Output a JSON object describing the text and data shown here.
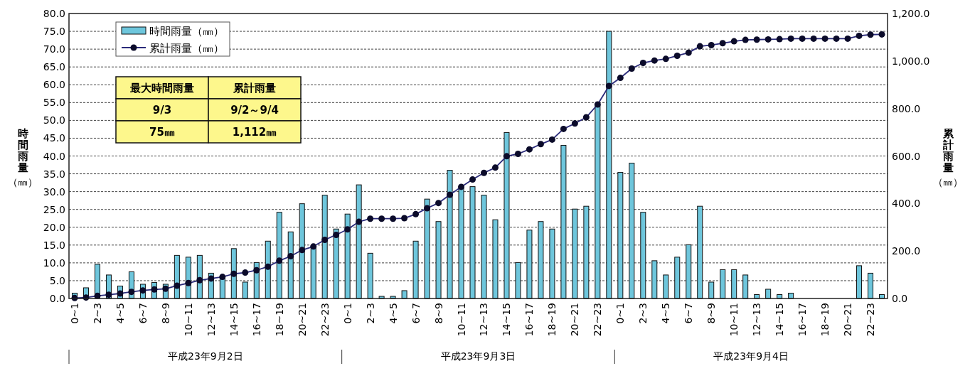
{
  "chart_data": {
    "type": "bar",
    "ylabel": "時間雨量（㎜）",
    "y2label": "累計雨量（㎜）",
    "categories": [
      "0~1",
      null,
      "2~3",
      null,
      "4~5",
      null,
      "6~7",
      null,
      "8~9",
      null,
      "10~11",
      null,
      "12~13",
      null,
      "14~15",
      null,
      "16~17",
      null,
      "18~19",
      null,
      "20~21",
      null,
      "22~23",
      null,
      "0~1",
      null,
      "2~3",
      null,
      "4~5",
      null,
      "6~7",
      null,
      "8~9",
      null,
      "10~11",
      null,
      "12~13",
      null,
      "14~15",
      null,
      "16~17",
      null,
      "18~19",
      null,
      "20~21",
      null,
      "22~23",
      null,
      "0~1",
      null,
      "2~3",
      null,
      "4~5",
      null,
      "6~7",
      null,
      "8~9",
      null,
      "10~11",
      null,
      "12~13",
      null,
      "14~15",
      null,
      "16~17",
      null,
      "18~19",
      null,
      "20~21",
      null,
      "22~23",
      null
    ],
    "series": [
      {
        "name": "時間雨量（㎜）",
        "color": "#6ec6dc",
        "values": [
          1.5,
          3.0,
          9.6,
          6.6,
          3.5,
          7.5,
          4.0,
          4.5,
          4.0,
          12.1,
          11.6,
          12.1,
          7.1,
          6.0,
          14.0,
          4.6,
          10.1,
          16.1,
          24.2,
          18.7,
          26.6,
          14.5,
          29.0,
          19.5,
          23.7,
          31.9,
          12.7,
          0.6,
          0.6,
          2.2,
          16.1,
          27.9,
          21.6,
          36.0,
          31.0,
          31.4,
          29.0,
          22.1,
          46.6,
          10.1,
          19.2,
          21.6,
          19.5,
          43.0,
          25.1,
          25.9,
          54.1,
          75.0,
          35.4,
          38.0,
          24.2,
          10.6,
          6.6,
          11.6,
          15.1,
          25.9,
          4.6,
          8.1,
          8.1,
          6.6,
          1.1,
          2.6,
          1.1,
          1.5,
          0,
          0,
          0,
          0,
          0,
          9.2,
          7.1,
          1.1
        ]
      },
      {
        "name": "累計雨量（㎜）",
        "type": "line",
        "axis": "y2",
        "color": "#2a2a7a",
        "marker": "circle",
        "values": [
          2,
          4,
          11,
          16,
          21,
          28,
          34,
          38,
          41,
          54,
          65,
          77,
          84,
          91,
          104,
          109,
          119,
          134,
          159,
          178,
          204,
          219,
          247,
          268,
          291,
          323,
          336,
          336,
          336,
          338,
          355,
          380,
          402,
          437,
          470,
          501,
          529,
          551,
          599,
          609,
          628,
          650,
          669,
          714,
          737,
          763,
          817,
          895,
          929,
          968,
          992,
          1002,
          1009,
          1022,
          1035,
          1062,
          1067,
          1075,
          1083,
          1089,
          1090,
          1091,
          1092,
          1094,
          1094,
          1094,
          1094,
          1094,
          1094,
          1106,
          1111,
          1112
        ]
      }
    ],
    "ylim": [
      0,
      80
    ],
    "yticks": [
      {
        "value": 0,
        "label": "0.0"
      },
      {
        "value": 5,
        "label": "5.0"
      },
      {
        "value": 10,
        "label": "10.0"
      },
      {
        "value": 15,
        "label": "15.0"
      },
      {
        "value": 20,
        "label": "20.0"
      },
      {
        "value": 25,
        "label": "25.0"
      },
      {
        "value": 30,
        "label": "30.0"
      },
      {
        "value": 35,
        "label": "35.0"
      },
      {
        "value": 40,
        "label": "40.0"
      },
      {
        "value": 45,
        "label": "45.0"
      },
      {
        "value": 50,
        "label": "50.0"
      },
      {
        "value": 55,
        "label": "55.0"
      },
      {
        "value": 60,
        "label": "60.0"
      },
      {
        "value": 65,
        "label": "65.0"
      },
      {
        "value": 70,
        "label": "70.0"
      },
      {
        "value": 75,
        "label": "75.0"
      },
      {
        "value": 80,
        "label": "80.0"
      }
    ],
    "y2lim": [
      0,
      1200
    ],
    "y2ticks": [
      {
        "value": 0,
        "label": "0.0"
      },
      {
        "value": 200,
        "label": "200.0"
      },
      {
        "value": 400,
        "label": "400.0"
      },
      {
        "value": 600,
        "label": "600.0"
      },
      {
        "value": 800,
        "label": "800.0"
      },
      {
        "value": 1000,
        "label": "1,000.0"
      },
      {
        "value": 1200,
        "label": "1,200.0"
      }
    ],
    "grid": "y",
    "legend": "top left",
    "annotations": [
      "最大時間雨量",
      "累計雨量",
      "9/3",
      "9/2～9/4",
      "75㎜",
      "1,112㎜",
      "平成23年9月2日",
      "平成23年9月3日",
      "平成23年9月4日"
    ]
  }
}
